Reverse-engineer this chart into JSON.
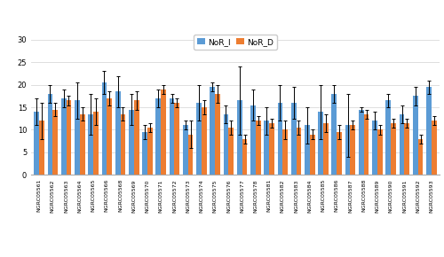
{
  "categories": [
    "NGRC05561",
    "NGRC05562",
    "NGRC05563",
    "NGRC05564",
    "NGRC05565",
    "NGRC05566",
    "NGRC05568",
    "NGRC05569",
    "NGRC05570",
    "NGRC05571",
    "NGRC05572",
    "NGRC05573",
    "NGRC05574",
    "NGRC05575",
    "NGRC05576",
    "NGRC05577",
    "NGRC05578",
    "NGRC05581",
    "NGRC05582",
    "NGRC05583",
    "NGRC05584",
    "NGRC05585",
    "NGRC05586",
    "NGRC05587",
    "NGRC05588",
    "NGRC05589",
    "NGRC05590",
    "NGRC05591",
    "NGRC05592",
    "NGRC05593"
  ],
  "NoR_I": [
    14,
    18,
    17,
    16.5,
    13.5,
    20.5,
    18.5,
    14.5,
    9.5,
    17,
    17,
    11,
    16,
    19.5,
    13.5,
    16.5,
    15.5,
    12,
    16,
    16,
    11,
    14,
    18,
    11,
    14.5,
    12,
    16.5,
    13.5,
    17.5,
    19.5
  ],
  "NoR_D": [
    12,
    14.5,
    16.5,
    13.5,
    14,
    17,
    13.5,
    16.5,
    10.5,
    19,
    16,
    9,
    15,
    18,
    10.5,
    8,
    12,
    11.5,
    10,
    10.5,
    9,
    11.5,
    9.5,
    11,
    13.5,
    10,
    11.5,
    11.5,
    8,
    12
  ],
  "NoR_I_err": [
    3,
    2,
    2,
    4,
    4.5,
    2.5,
    3.5,
    3.5,
    1.5,
    2,
    1,
    1,
    4,
    1,
    2,
    7.5,
    3.5,
    3,
    4,
    3.5,
    4,
    6,
    2,
    7,
    0.5,
    2,
    1.5,
    2,
    2,
    1.5
  ],
  "NoR_D_err": [
    4,
    1.5,
    1,
    1.5,
    3,
    1.5,
    1.5,
    2,
    1,
    1,
    1,
    3,
    1.5,
    2,
    1.5,
    1,
    1,
    1,
    2,
    1.5,
    1,
    2,
    1.5,
    1,
    1,
    1,
    1,
    1,
    1,
    1
  ],
  "bar_color_I": "#5B9BD5",
  "bar_color_D": "#ED7D31",
  "ylim": [
    0,
    32
  ],
  "yticks": [
    0,
    5,
    10,
    15,
    20,
    25,
    30
  ],
  "legend_labels": [
    "NoR_I",
    "NoR_D"
  ],
  "figsize": [
    5.0,
    2.9
  ],
  "dpi": 100,
  "bar_width": 0.38,
  "background_color": "#FFFFFF",
  "grid_color": "#D9D9D9",
  "tick_fontsize": 4.5,
  "legend_fontsize": 6.5
}
